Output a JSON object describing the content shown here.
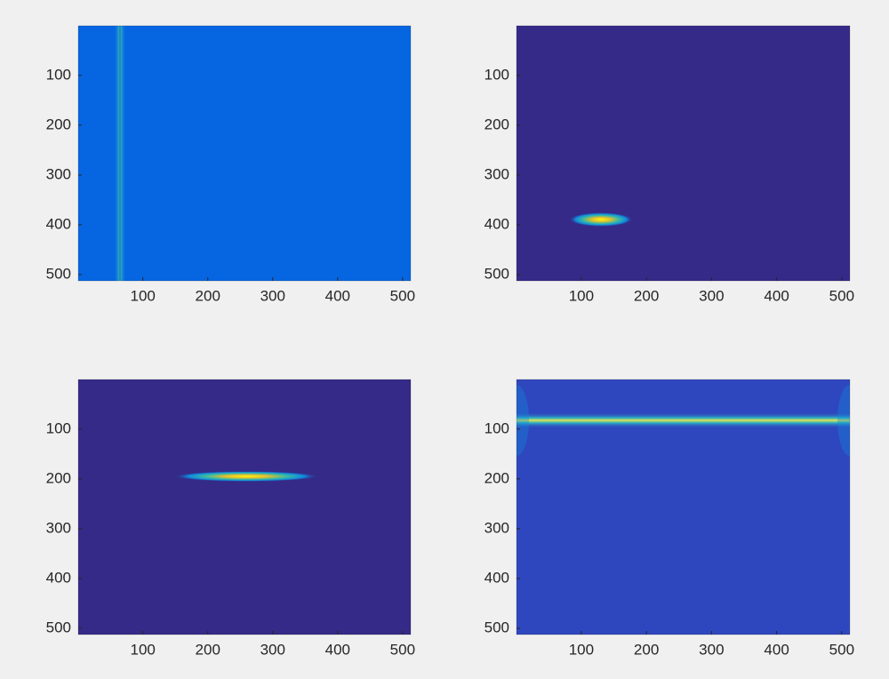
{
  "chart_data": [
    {
      "type": "image",
      "color": "#0666e2",
      "xlim": [
        0.5,
        512.5
      ],
      "ylim": [
        0.5,
        512.5
      ],
      "ydir": "reverse",
      "xticks": [
        100,
        200,
        300,
        400,
        500
      ],
      "yticks": [
        100,
        200,
        300,
        400,
        500
      ]
    },
    {
      "type": "image",
      "color": "#352a87",
      "xlim": [
        0.5,
        512.5
      ],
      "ylim": [
        0.5,
        512.5
      ],
      "ydir": "reverse",
      "xticks": [
        100,
        200,
        300,
        400,
        500
      ],
      "yticks": [
        100,
        200,
        300,
        400,
        500
      ]
    },
    {
      "type": "image",
      "color": "#352a87",
      "xlim": [
        0.5,
        512.5
      ],
      "ylim": [
        0.5,
        512.5
      ],
      "ydir": "reverse",
      "xticks": [
        100,
        200,
        300,
        400,
        500
      ],
      "yticks": [
        100,
        200,
        300,
        400,
        500
      ]
    },
    {
      "type": "image",
      "color": "#2f47be",
      "xlim": [
        0.5,
        512.5
      ],
      "ylim": [
        0.5,
        512.5
      ],
      "ydir": "reverse",
      "xticks": [
        100,
        200,
        300,
        400,
        500
      ],
      "yticks": [
        100,
        200,
        300,
        400,
        500
      ]
    }
  ]
}
